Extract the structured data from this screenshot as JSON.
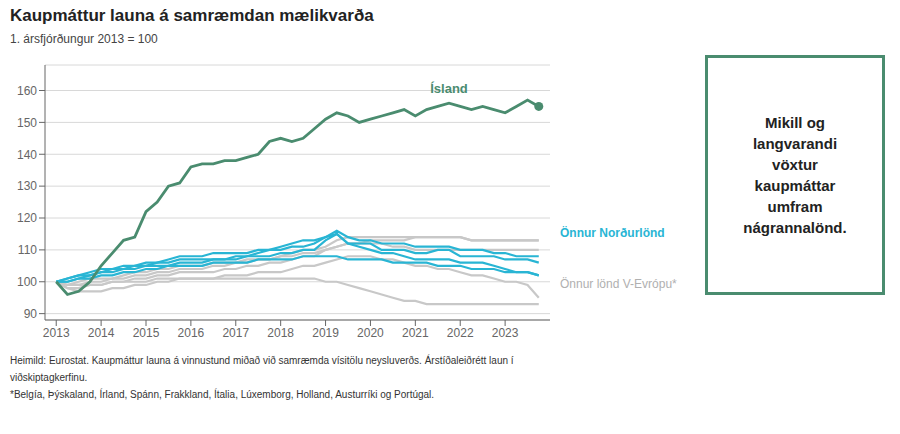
{
  "chart_data": {
    "type": "line",
    "title": "Kaupmáttur launa á samræmdan mælikvarða",
    "subtitle": "1. ársfjórðungur 2013 = 100",
    "x": [
      2013,
      2013.25,
      2013.5,
      2013.75,
      2014,
      2014.25,
      2014.5,
      2014.75,
      2015,
      2015.25,
      2015.5,
      2015.75,
      2016,
      2016.25,
      2016.5,
      2016.75,
      2017,
      2017.25,
      2017.5,
      2017.75,
      2018,
      2018.25,
      2018.5,
      2018.75,
      2019,
      2019.25,
      2019.5,
      2019.75,
      2020,
      2020.25,
      2020.5,
      2020.75,
      2021,
      2021.25,
      2021.5,
      2021.75,
      2022,
      2022.25,
      2022.5,
      2022.75,
      2023,
      2023.25,
      2023.5,
      2023.75
    ],
    "xlim": [
      2012.75,
      2024.0
    ],
    "xticks": [
      2013,
      2014,
      2015,
      2016,
      2017,
      2018,
      2019,
      2020,
      2021,
      2022,
      2023
    ],
    "ylim": [
      88,
      168
    ],
    "yticks": [
      90,
      100,
      110,
      120,
      130,
      140,
      150,
      160
    ],
    "grid": true,
    "series": [
      {
        "color": "#c8c8c8",
        "values": [
          100,
          99,
          99,
          100,
          100,
          101,
          101,
          102,
          102,
          103,
          103,
          104,
          104,
          104,
          105,
          105,
          106,
          106,
          107,
          107,
          108,
          108,
          109,
          109,
          110,
          111,
          112,
          112,
          113,
          113,
          113,
          113,
          114,
          114,
          114,
          114,
          114,
          113,
          113,
          113,
          113,
          113,
          113,
          113
        ]
      },
      {
        "color": "#c8c8c8",
        "values": [
          100,
          98,
          98,
          99,
          99,
          100,
          100,
          101,
          101,
          102,
          102,
          103,
          103,
          103,
          103,
          104,
          104,
          105,
          105,
          106,
          106,
          107,
          108,
          108,
          110,
          111,
          112,
          112,
          112,
          112,
          111,
          111,
          110,
          110,
          110,
          110,
          110,
          110,
          110,
          110,
          110,
          110,
          110,
          110
        ]
      },
      {
        "color": "#c8c8c8",
        "values": [
          100,
          99,
          100,
          101,
          101,
          101,
          102,
          103,
          103,
          104,
          104,
          105,
          105,
          105,
          106,
          106,
          106,
          107,
          107,
          107,
          108,
          109,
          110,
          110,
          111,
          113,
          114,
          114,
          114,
          114,
          114,
          114,
          114,
          114,
          114,
          114,
          114,
          113,
          113,
          113,
          113,
          113,
          113,
          113
        ]
      },
      {
        "color": "#c8c8c8",
        "values": [
          100,
          98,
          97,
          97,
          97,
          98,
          98,
          99,
          99,
          100,
          100,
          101,
          101,
          101,
          101,
          102,
          102,
          102,
          103,
          103,
          103,
          104,
          105,
          105,
          106,
          107,
          108,
          108,
          108,
          107,
          107,
          106,
          105,
          105,
          104,
          104,
          103,
          102,
          102,
          101,
          100,
          100,
          99,
          95
        ]
      },
      {
        "color": "#c8c8c8",
        "values": [
          100,
          99,
          99,
          99,
          99,
          100,
          100,
          100,
          100,
          101,
          101,
          101,
          101,
          101,
          101,
          101,
          101,
          101,
          101,
          101,
          101,
          101,
          101,
          101,
          100,
          100,
          99,
          98,
          97,
          96,
          95,
          94,
          94,
          93,
          93,
          93,
          93,
          93,
          93,
          93,
          93,
          93,
          93,
          93
        ]
      },
      {
        "color": "#29b5d4",
        "values": [
          100,
          101,
          102,
          103,
          104,
          104,
          104,
          105,
          105,
          106,
          106,
          107,
          107,
          107,
          107,
          107,
          107,
          108,
          108,
          108,
          109,
          109,
          110,
          110,
          113,
          115,
          112,
          112,
          112,
          110,
          110,
          110,
          109,
          109,
          110,
          110,
          108,
          108,
          108,
          108,
          107,
          107,
          107,
          106
        ]
      },
      {
        "color": "#29b5d4",
        "values": [
          100,
          100,
          101,
          102,
          103,
          103,
          104,
          104,
          105,
          105,
          105,
          106,
          106,
          106,
          107,
          107,
          108,
          108,
          109,
          110,
          111,
          112,
          113,
          113,
          114,
          115,
          112,
          111,
          110,
          109,
          109,
          108,
          107,
          107,
          107,
          107,
          106,
          106,
          106,
          105,
          104,
          103,
          103,
          102
        ]
      },
      {
        "color": "#29b5d4",
        "values": [
          100,
          101,
          102,
          102,
          103,
          104,
          105,
          105,
          106,
          106,
          107,
          108,
          108,
          108,
          109,
          109,
          109,
          109,
          110,
          110,
          110,
          111,
          111,
          112,
          114,
          116,
          114,
          113,
          113,
          112,
          112,
          112,
          111,
          111,
          111,
          111,
          110,
          110,
          110,
          109,
          109,
          108,
          108,
          108
        ]
      },
      {
        "color": "#29b5d4",
        "values": [
          100,
          100,
          101,
          101,
          102,
          102,
          103,
          103,
          104,
          104,
          105,
          105,
          105,
          105,
          106,
          106,
          106,
          106,
          107,
          107,
          107,
          107,
          108,
          108,
          108,
          108,
          107,
          107,
          107,
          107,
          106,
          106,
          106,
          106,
          105,
          105,
          105,
          104,
          104,
          104,
          103,
          103,
          103,
          102
        ]
      },
      {
        "name": "Ísland",
        "color": "#4a8c6f",
        "values": [
          100,
          96,
          97,
          100,
          105,
          109,
          113,
          114,
          122,
          125,
          130,
          131,
          136,
          137,
          137,
          138,
          138,
          139,
          140,
          144,
          145,
          144,
          145,
          148,
          151,
          153,
          152,
          150,
          151,
          152,
          153,
          154,
          152,
          154,
          155,
          156,
          155,
          154,
          155,
          154,
          153,
          155,
          157,
          155
        ]
      }
    ],
    "annotations": [
      {
        "text": "Önnur Norðurlönd",
        "color": "#29b5d4"
      },
      {
        "text": "Önnur lönd V-Evrópu*",
        "color": "#b0b0b0"
      },
      {
        "text": "Mikill og\nlangvarandi\nvöxtur\nkaupmáttar\numfram\nnágrannalönd.",
        "color": "#4a8c6f"
      }
    ],
    "footnotes": [
      "Heimild: Eurostat. Kaupmáttur launa á vinnustund miðað við samræmda vísitölu neysluverðs. Árstíðaleiðrétt laun í",
      "viðskiptagkerfinu.",
      "*Belgía, Þýskaland, Írland, Spánn, Frakkland, Ítalia, Lúxemborg, Holland, Austurríki og Portúgal."
    ]
  }
}
